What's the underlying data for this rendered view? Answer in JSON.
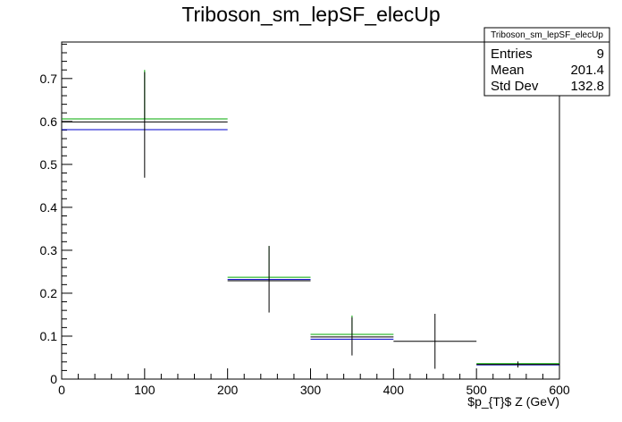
{
  "chart_data": {
    "type": "scatter",
    "title": "Triboson_sm_lepSF_elecUp",
    "xlabel": "$p_{T}$ Z (GeV)",
    "ylabel": "",
    "xlim": [
      0,
      600
    ],
    "ylim": [
      0,
      0.785
    ],
    "x_ticks": [
      "0",
      "100",
      "200",
      "300",
      "400",
      "500",
      "600"
    ],
    "y_ticks": [
      "0",
      "0.1",
      "0.2",
      "0.3",
      "0.4",
      "0.5",
      "0.6",
      "0.7"
    ],
    "grid": false,
    "legend": "none",
    "stats_box": {
      "title": "Triboson_sm_lepSF_elecUp",
      "rows": [
        {
          "label": "Entries",
          "value": "9"
        },
        {
          "label": "Mean",
          "value": "201.4"
        },
        {
          "label": "Std Dev",
          "value": "132.8"
        }
      ],
      "position": "top-right"
    },
    "series": [
      {
        "color": "#0000cc",
        "points": [
          {
            "xlo": 0,
            "xhi": 200,
            "y": 0.581
          },
          {
            "xlo": 200,
            "xhi": 300,
            "y": 0.232
          },
          {
            "xlo": 300,
            "xhi": 400,
            "y": 0.093
          },
          {
            "xlo": 500,
            "xhi": 600,
            "y": 0.033
          }
        ]
      },
      {
        "color": "#00aa00",
        "points": [
          {
            "xlo": 0,
            "xhi": 200,
            "y": 0.606,
            "ylo": 0.606,
            "yhi": 0.72
          },
          {
            "xlo": 200,
            "xhi": 300,
            "y": 0.237,
            "ylo": 0.237,
            "yhi": 0.31
          },
          {
            "xlo": 300,
            "xhi": 400,
            "y": 0.104,
            "ylo": 0.104,
            "yhi": 0.148
          },
          {
            "xlo": 500,
            "xhi": 600,
            "y": 0.036
          }
        ]
      },
      {
        "color": "#000000",
        "points": [
          {
            "xlo": 0,
            "xhi": 200,
            "y": 0.599,
            "ylo": 0.469,
            "yhi": 0.715
          },
          {
            "xlo": 200,
            "xhi": 300,
            "y": 0.229,
            "ylo": 0.155,
            "yhi": 0.31
          },
          {
            "xlo": 300,
            "xhi": 400,
            "y": 0.098,
            "ylo": 0.055,
            "yhi": 0.144
          },
          {
            "xlo": 400,
            "xhi": 500,
            "y": 0.088,
            "ylo": 0.024,
            "yhi": 0.152
          },
          {
            "xlo": 500,
            "xhi": 600,
            "y": 0.034,
            "ylo": 0.027,
            "yhi": 0.041
          }
        ]
      }
    ]
  }
}
